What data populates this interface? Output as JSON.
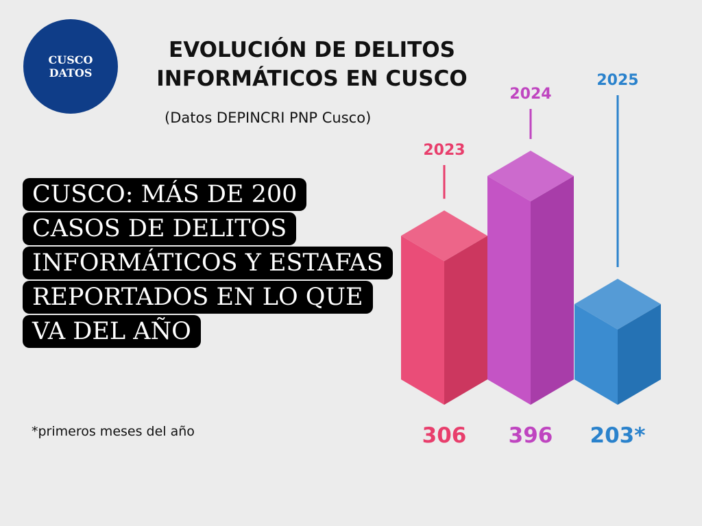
{
  "logo": {
    "line1": "CUSCO",
    "line2": "DATOS"
  },
  "title": {
    "line1": "EVOLUCIÓN DE DELITOS",
    "line2": "INFORMÁTICOS EN CUSCO"
  },
  "source": "(Datos DEPINCRI PNP Cusco)",
  "headline": "CUSCO: MÁS DE 200 CASOS DE DELITOS INFORMÁTICOS Y ESTAFAS REPORTADOS EN LO QUE VA DEL AÑO",
  "footnote": "*primeros meses del año",
  "colors": {
    "2023": "#e83e6c",
    "2024": "#bf45c0",
    "2025": "#2a82cc",
    "background": "#ececec",
    "headline_bg": "#000000"
  },
  "chart_data": {
    "type": "bar",
    "categories": [
      "2023",
      "2024",
      "2025"
    ],
    "values": [
      306,
      396,
      203
    ],
    "value_labels": [
      "306",
      "396",
      "203*"
    ],
    "title": "EVOLUCIÓN DE DELITOS INFORMÁTICOS EN CUSCO",
    "subtitle": "(Datos DEPINCRI PNP Cusco)",
    "xlabel": "",
    "ylabel": "",
    "grid": false,
    "legend": "none"
  }
}
